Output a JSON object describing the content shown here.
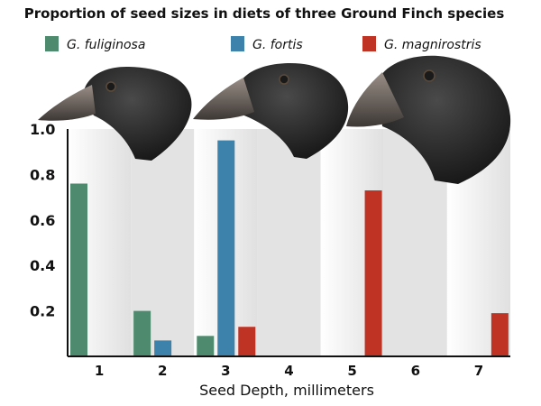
{
  "chart_data": {
    "type": "bar",
    "title": "Proportion of seed sizes in diets of three Ground Finch species",
    "xlabel": "Seed Depth, millimeters",
    "ylabel": "",
    "categories": [
      "1",
      "2",
      "3",
      "4",
      "5",
      "6",
      "7"
    ],
    "series": [
      {
        "name": "G. fuliginosa",
        "color": "#4e8b6e",
        "values": [
          0.76,
          0.2,
          0.09,
          0,
          0,
          0,
          0
        ]
      },
      {
        "name": "G. fortis",
        "color": "#3c82ab",
        "values": [
          0,
          0.07,
          0.95,
          0,
          0,
          0,
          0
        ]
      },
      {
        "name": "G. magnirostris",
        "color": "#bf3325",
        "values": [
          0,
          0,
          0.13,
          0,
          0.73,
          0,
          0.19
        ]
      }
    ],
    "ylim": [
      0,
      1.0
    ],
    "yticks": [
      0.2,
      0.4,
      0.6,
      0.8,
      1.0
    ],
    "ytick_labels": [
      "0.2",
      "0.4",
      "0.6",
      "0.8",
      "1.0"
    ],
    "grid": false,
    "legend_position": "top",
    "background_bands": [
      "#f0f0f0",
      "#e3e3e3"
    ]
  }
}
